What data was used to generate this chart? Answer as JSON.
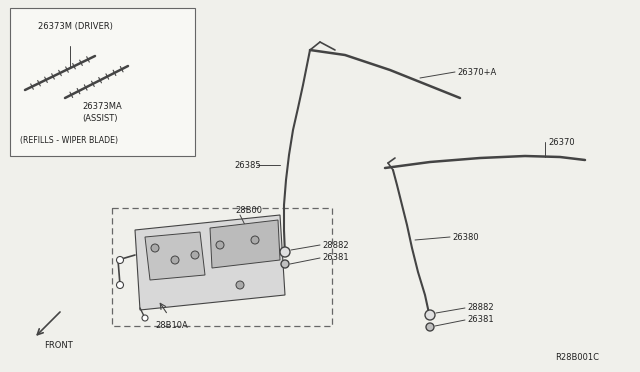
{
  "bg_color": "#f0f0eb",
  "line_color": "#444444",
  "text_color": "#222222",
  "fig_width": 6.4,
  "fig_height": 3.72,
  "dpi": 100,
  "ref_code": "R28B001C",
  "parts": {
    "26373M": "26373M (DRIVER)",
    "26373MA": "26373MA\n(ASSIST)",
    "26385": "26385",
    "26370A": "26370+A",
    "26370": "26370",
    "28882_1": "28882",
    "26381_1": "26381",
    "26380": "26380",
    "28882_2": "28882",
    "26381_2": "26381",
    "28B00": "28B00",
    "28B10A": "28B10A",
    "refills": "(REFILLS - WIPER BLADE)"
  }
}
